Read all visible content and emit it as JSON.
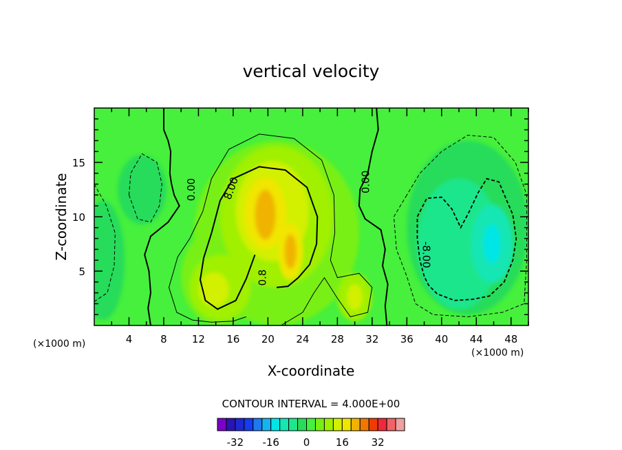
{
  "chart_data": {
    "type": "contour",
    "title": "vertical velocity",
    "xlabel": "X-coordinate",
    "ylabel": "Z-coordinate",
    "x_unit_left": "(×1000 m)",
    "x_unit_right": "(×1000 m)",
    "xlim": [
      0,
      50
    ],
    "ylim": [
      0,
      20
    ],
    "x_ticks": [
      4,
      8,
      12,
      16,
      20,
      24,
      28,
      32,
      36,
      40,
      44,
      48
    ],
    "x_minor_ticks": [
      2,
      6,
      10,
      14,
      18,
      22,
      26,
      30,
      34,
      38,
      42,
      46,
      50
    ],
    "y_ticks": [
      5,
      10,
      15
    ],
    "y_minor_ticks": [
      1,
      2,
      3,
      4,
      6,
      7,
      8,
      9,
      11,
      12,
      13,
      14,
      16,
      17,
      18,
      19
    ],
    "contour_interval_text": "CONTOUR INTERVAL = 4.000E+00",
    "contour_labels": [
      {
        "text": "0.00",
        "x": 11.2,
        "z": 12.5,
        "angle": -90
      },
      {
        "text": "8.00",
        "x": 15.8,
        "z": 12.6,
        "angle": -70
      },
      {
        "text": "0.00",
        "x": 31.3,
        "z": 13.2,
        "angle": -90
      },
      {
        "text": "-8.00",
        "x": 38.2,
        "z": 6.5,
        "angle": 90
      },
      {
        "text": "0.8",
        "x": 19.4,
        "z": 4.4,
        "angle": -90
      }
    ],
    "colorbar": {
      "colors": [
        "#7a00c8",
        "#2a14b4",
        "#1e28d2",
        "#143cf0",
        "#1e78f0",
        "#14b4f0",
        "#00e6e6",
        "#14e6b4",
        "#1ee68c",
        "#28dc5a",
        "#46f03c",
        "#78f014",
        "#a0f000",
        "#d2f000",
        "#f0e600",
        "#f0b400",
        "#f07800",
        "#f03c00",
        "#f0283c",
        "#f06464",
        "#f0a0a0"
      ],
      "labels": [
        "-32",
        "-16",
        "0",
        "16",
        "32"
      ],
      "label_values": [
        -32,
        -16,
        0,
        16,
        32
      ],
      "vmin": -40,
      "vmax": 44
    },
    "features": [
      {
        "kind": "updraft",
        "x": 19.7,
        "z": 10.2,
        "peak": 16
      },
      {
        "kind": "updraft",
        "x": 22.6,
        "z": 6.8,
        "peak": 12
      },
      {
        "kind": "updraft",
        "x": 13.8,
        "z": 3.2,
        "peak": 8
      },
      {
        "kind": "updraft",
        "x": 30.0,
        "z": 2.6,
        "peak": 8
      },
      {
        "kind": "downdraft",
        "x": 45.5,
        "z": 7.0,
        "peak": -12
      },
      {
        "kind": "downdraft",
        "x": 41.5,
        "z": 8.0,
        "peak": -8
      },
      {
        "kind": "downdraft",
        "x": 5.5,
        "z": 13.0,
        "peak": -4
      },
      {
        "kind": "downdraft",
        "x": 1.0,
        "z": 5.5,
        "peak": -4
      }
    ]
  }
}
